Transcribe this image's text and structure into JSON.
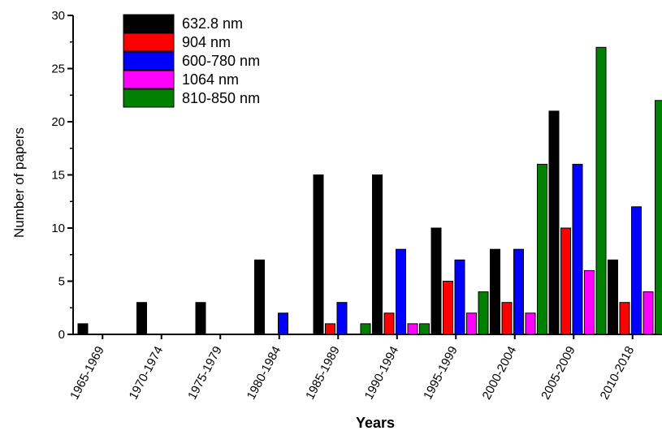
{
  "chart_data": {
    "type": "bar",
    "title": "",
    "xlabel": "Years",
    "ylabel": "Number of papers",
    "ylim": [
      0,
      30
    ],
    "yticks": [
      "0",
      "5",
      "10",
      "15",
      "20",
      "25",
      "30"
    ],
    "grid": false,
    "legend_position": "top-left",
    "categories": [
      "1965-1969",
      "1970-1974",
      "1975-1979",
      "1980-1984",
      "1985-1989",
      "1990-1994",
      "1995-1999",
      "2000-2004",
      "2005-2009",
      "2010-2018"
    ],
    "series": [
      {
        "name": "632.8 nm",
        "color": "#000000",
        "values": [
          1,
          3,
          3,
          7,
          15,
          15,
          10,
          8,
          21,
          7
        ]
      },
      {
        "name": "904 nm",
        "color": "#ff0000",
        "values": [
          0,
          0,
          0,
          0,
          1,
          2,
          5,
          3,
          10,
          3
        ]
      },
      {
        "name": "600-780 nm",
        "color": "#0000ff",
        "values": [
          0,
          0,
          0,
          2,
          3,
          8,
          7,
          8,
          16,
          12
        ]
      },
      {
        "name": "1064 nm",
        "color": "#ff00ff",
        "values": [
          0,
          0,
          0,
          0,
          0,
          1,
          2,
          2,
          6,
          4
        ]
      },
      {
        "name": "810-850 nm",
        "color": "#008000",
        "values": [
          0,
          0,
          0,
          0,
          1,
          1,
          4,
          16,
          27,
          22
        ]
      }
    ]
  }
}
